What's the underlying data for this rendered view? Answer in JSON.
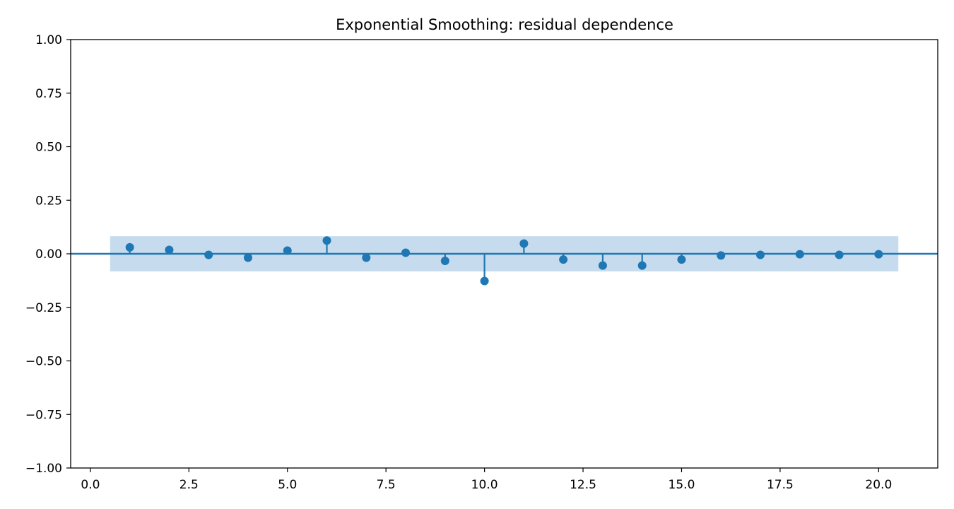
{
  "chart_data": {
    "type": "stem",
    "title": "Exponential Smoothing: residual dependence",
    "xlabel": "",
    "ylabel": "",
    "xlim": [
      -0.5,
      21.5
    ],
    "ylim": [
      -1.0,
      1.0
    ],
    "x_ticks": [
      "0.0",
      "2.5",
      "5.0",
      "7.5",
      "10.0",
      "12.5",
      "15.0",
      "17.5",
      "20.0"
    ],
    "x_tick_values": [
      0,
      2.5,
      5,
      7.5,
      10,
      12.5,
      15,
      17.5,
      20
    ],
    "y_ticks": [
      "1.00",
      "0.75",
      "0.50",
      "0.25",
      "0.00",
      "−0.25",
      "−0.50",
      "−0.75",
      "−1.00"
    ],
    "y_tick_values": [
      1.0,
      0.75,
      0.5,
      0.25,
      0.0,
      -0.25,
      -0.5,
      -0.75,
      -1.0
    ],
    "lags": [
      1,
      2,
      3,
      4,
      5,
      6,
      7,
      8,
      9,
      10,
      11,
      12,
      13,
      14,
      15,
      16,
      17,
      18,
      19,
      20
    ],
    "values": [
      0.03,
      0.018,
      -0.005,
      -0.018,
      0.015,
      0.062,
      -0.018,
      0.005,
      -0.033,
      -0.127,
      0.048,
      -0.027,
      -0.055,
      -0.055,
      -0.027,
      -0.008,
      -0.005,
      -0.002,
      -0.005,
      -0.002
    ],
    "confidence_band": {
      "x_range": [
        0.5,
        20.5
      ],
      "lower": -0.082,
      "upper": 0.082
    },
    "grid": false,
    "colors": {
      "series": "#1f77b4",
      "band": "#c6dcee",
      "axis": "#000000"
    }
  }
}
